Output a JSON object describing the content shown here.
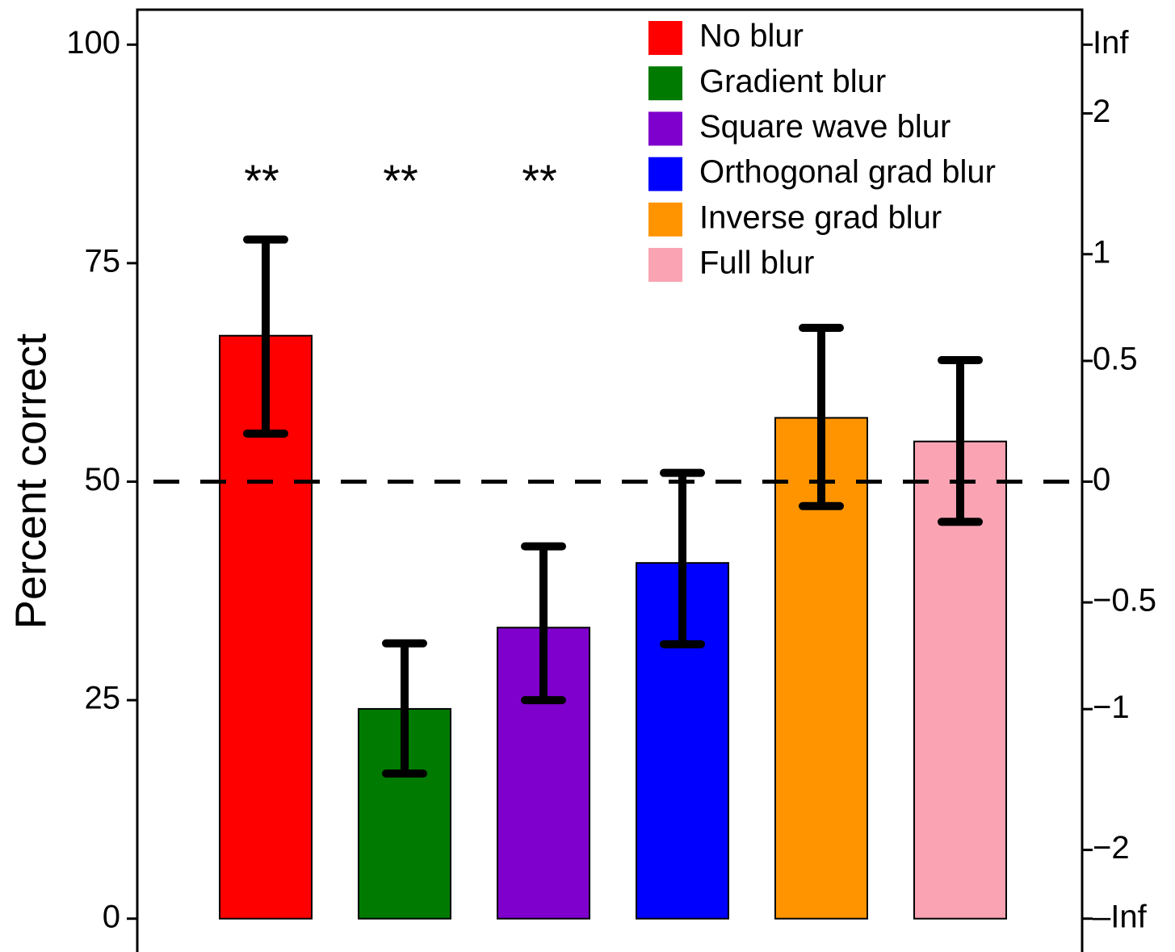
{
  "chart_data": {
    "type": "bar",
    "y_axis_label": "Percent correct",
    "categories": [
      "No blur",
      "Gradient blur",
      "Square wave blur",
      "Orthogonal grad blur",
      "Inverse grad blur",
      "Full blur"
    ],
    "colors": [
      "#ff0000",
      "#007a00",
      "#7f00cc",
      "#0000ff",
      "#ff9400",
      "#f9a3b3"
    ],
    "values": [
      66.7,
      24.0,
      33.3,
      40.7,
      57.3,
      54.6
    ],
    "error_low": [
      55.5,
      16.6,
      25.0,
      31.4,
      47.2,
      45.4
    ],
    "error_high": [
      77.7,
      31.5,
      42.6,
      51.0,
      67.6,
      63.9
    ],
    "significance": [
      "**",
      "**",
      "**",
      null,
      null,
      null
    ],
    "reference_line": 50,
    "ylim": [
      -4,
      104
    ],
    "yticks": [
      0,
      25,
      50,
      75,
      100
    ],
    "y2scale": "dprime",
    "y2ticks": [
      {
        "value": "-Infinity",
        "label": "–Inf"
      },
      {
        "value": -2,
        "label": "−2"
      },
      {
        "value": -1,
        "label": "−1"
      },
      {
        "value": -0.5,
        "label": "−0.5"
      },
      0,
      0.5,
      1,
      2,
      {
        "value": "Infinity",
        "label": "Inf"
      }
    ],
    "legend": "top-right"
  }
}
